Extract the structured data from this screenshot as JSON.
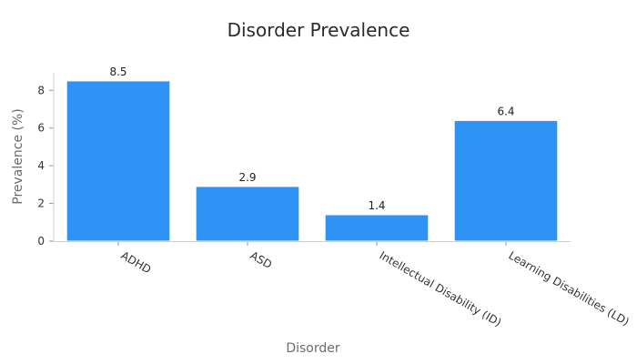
{
  "chart_data": {
    "type": "bar",
    "title": "Disorder Prevalence",
    "xlabel": "Disorder",
    "ylabel": "Prevalence (%)",
    "categories": [
      "ADHD",
      "ASD",
      "Intellectual Disability (ID)",
      "Learning Disabilities (LD)"
    ],
    "values": [
      8.5,
      2.9,
      1.4,
      6.4
    ],
    "value_labels": [
      "8.5",
      "2.9",
      "1.4",
      "6.4"
    ],
    "yticks": [
      0,
      2,
      4,
      6,
      8
    ],
    "ylim": [
      0,
      8.93
    ],
    "grid": false,
    "bar_color": "#2f93f5"
  }
}
